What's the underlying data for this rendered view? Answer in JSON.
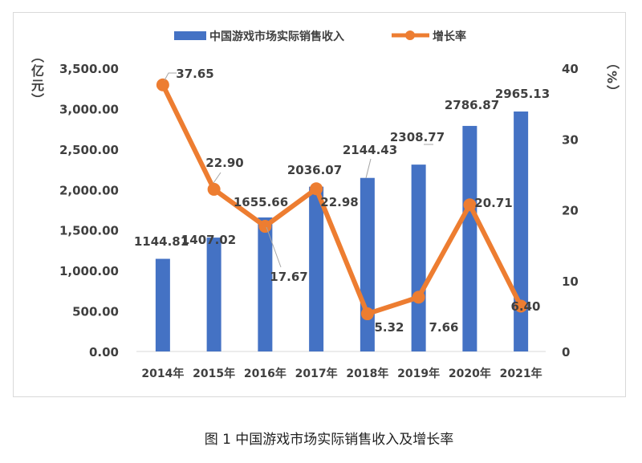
{
  "caption": "图 1 中国游戏市场实际销售收入及增长率",
  "chart_data": {
    "type": "bar+line",
    "categories": [
      "2014年",
      "2015年",
      "2016年",
      "2017年",
      "2018年",
      "2019年",
      "2020年",
      "2021年"
    ],
    "series": [
      {
        "name": "中国游戏市场实际销售收入",
        "type": "bar",
        "axis": "left",
        "color": "#4472c4",
        "values": [
          1144.81,
          1407.02,
          1655.66,
          2036.07,
          2144.43,
          2308.77,
          2786.87,
          2965.13
        ],
        "labels": [
          "1144.81",
          "1407.02",
          "1655.66",
          "2036.07",
          "2144.43",
          "2308.77",
          "2786.87",
          "2965.13"
        ]
      },
      {
        "name": "增长率",
        "type": "line",
        "axis": "right",
        "color": "#ed7d31",
        "values": [
          37.65,
          22.9,
          17.67,
          22.98,
          5.32,
          7.66,
          20.71,
          6.4
        ],
        "labels": [
          "37.65",
          "22.90",
          "17.67",
          "22.98",
          "5.32",
          "7.66",
          "20.71",
          "6.40"
        ]
      }
    ],
    "y_left": {
      "label": "（亿元）",
      "range": [
        0,
        3500
      ],
      "ticks": [
        "0.00",
        "500.00",
        "1,000.00",
        "1,500.00",
        "2,000.00",
        "2,500.00",
        "3,000.00",
        "3,500.00"
      ]
    },
    "y_right": {
      "label": "（%）",
      "range": [
        0,
        40
      ],
      "ticks": [
        "0",
        "10",
        "20",
        "30",
        "40"
      ]
    },
    "grid": false,
    "legend": "top"
  }
}
